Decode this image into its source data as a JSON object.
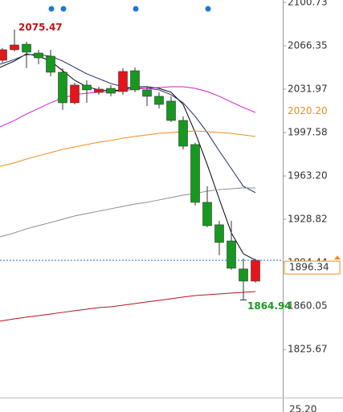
{
  "chart_data": {
    "type": "candlestick",
    "ylim": [
      1787.6,
      2102.64
    ],
    "yticks": [
      2100.73,
      2066.35,
      2031.97,
      1997.58,
      {
        "value": 1963.2,
        "label": "1963.20"
      },
      1928.82,
      1894.44,
      1860.05,
      1825.67
    ],
    "candles": {
      "open": [
        2054.9,
        2063.2,
        2067.6,
        2060.6,
        2058.1,
        2045.4,
        2021.2,
        2035.2,
        2029.5,
        2032.6,
        2030.1,
        2046.6,
        2031.4,
        2026.3,
        2022.5,
        2007.2,
        1988.1,
        1942.3,
        1924.5,
        1911.7,
        1889.5,
        1879.9
      ],
      "high": [
        2064.5,
        2075.47,
        2069.6,
        2063.2,
        2063.2,
        2048.6,
        2037.1,
        2039.0,
        2033.9,
        2035.2,
        2048.6,
        2049.2,
        2033.9,
        2029.5,
        2026.3,
        2010.4,
        1989.4,
        1955.0,
        1927.6,
        1927.6,
        1897.7,
        1897.7
      ],
      "low": [
        2053.0,
        2061.9,
        2048.6,
        2051.7,
        2042.2,
        2015.5,
        2019.9,
        2021.2,
        2027.5,
        2026.3,
        2027.5,
        2029.5,
        2018.6,
        2016.7,
        2005.9,
        1984.3,
        1939.7,
        1922.6,
        1900.3,
        1888.8,
        1864.94,
        1878.7
      ],
      "close": [
        2063.2,
        2067.0,
        2061.3,
        2056.8,
        2045.4,
        2021.2,
        2035.2,
        2031.4,
        2032.0,
        2028.8,
        2046.0,
        2031.4,
        2026.3,
        2019.9,
        2007.2,
        1986.8,
        1942.3,
        1923.8,
        1910.5,
        1890.1,
        1879.9,
        1896.34
      ]
    },
    "up_color": "#e8141b",
    "down_color": "#17991f",
    "moving_averages": [
      {
        "color": "#000000",
        "values": [
          2049.2,
          2054.3,
          2060.0,
          2058.1,
          2054.3,
          2046.6,
          2039.0,
          2033.9,
          2031.4,
          2030.7,
          2031.4,
          2033.9,
          2033.9,
          2032.6,
          2029.5,
          2019.9,
          1997.6,
          1972.2,
          1944.8,
          1918.1,
          1901.5,
          1896.5
        ]
      },
      {
        "color": "#1c2a6e",
        "values": [
          2051.7,
          2055.5,
          2059.4,
          2059.4,
          2058.1,
          2054.3,
          2049.2,
          2044.1,
          2040.3,
          2036.5,
          2033.9,
          2032.6,
          2032.6,
          2031.4,
          2027.6,
          2021.2,
          2010.4,
          1997.6,
          1983.0,
          1969.0,
          1955.0,
          1949.9
        ]
      },
      {
        "color": "#d21ed2",
        "values": [
          2002.1,
          2007.2,
          2012.3,
          2016.7,
          2021.2,
          2025.0,
          2027.6,
          2028.8,
          2029.5,
          2030.1,
          2030.7,
          2032.0,
          2032.6,
          2033.3,
          2033.9,
          2033.9,
          2032.6,
          2030.1,
          2026.3,
          2021.8,
          2017.4,
          2013.5
        ]
      },
      {
        "color": "#f08c1e",
        "values": [
          1970.9,
          1973.5,
          1976.6,
          1979.2,
          1981.7,
          1984.3,
          1986.2,
          1988.1,
          1990.0,
          1991.3,
          1993.2,
          1994.5,
          1995.7,
          1997.0,
          1997.6,
          1998.3,
          1998.9,
          1998.3,
          1997.6,
          1997.0,
          1995.7,
          1994.5
        ]
      },
      {
        "color": "#8c8c8c",
        "values": [
          1914.9,
          1918.1,
          1921.3,
          1923.8,
          1926.3,
          1928.9,
          1931.5,
          1933.4,
          1935.3,
          1937.2,
          1939.1,
          1941.0,
          1942.3,
          1944.2,
          1946.1,
          1948.0,
          1949.3,
          1951.2,
          1952.4,
          1953.1,
          1953.7,
          1953.7
        ]
      },
      {
        "color": "#b4141e",
        "values": [
          1848.1,
          1850.0,
          1851.3,
          1852.5,
          1853.8,
          1855.1,
          1856.4,
          1857.6,
          1858.9,
          1859.5,
          1860.8,
          1862.1,
          1863.4,
          1864.6,
          1865.9,
          1867.2,
          1868.4,
          1869.1,
          1869.7,
          1870.4,
          1871.0,
          1871.6
        ]
      }
    ],
    "axis_marker": {
      "value": 2020.2,
      "label": "2020.20",
      "color": "#f08c1e"
    },
    "high_label_index": 1,
    "low_label_index": 20,
    "last_price_color": "#2a6fc9",
    "lower_panel_label": "25.20"
  }
}
